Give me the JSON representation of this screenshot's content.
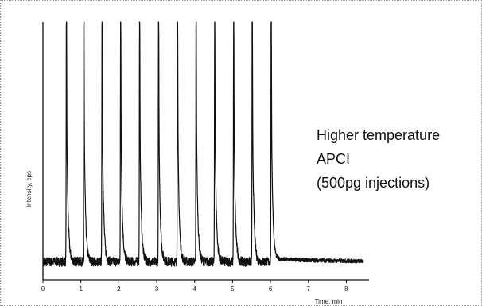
{
  "chart_data": {
    "type": "line",
    "xlabel": "Time, min",
    "ylabel": "Intensity, cps",
    "xlim": [
      0,
      8.6
    ],
    "ylim": [
      0,
      1
    ],
    "x_ticks": [
      0,
      1,
      2,
      3,
      4,
      5,
      6,
      7,
      8
    ],
    "grid": false,
    "line_color": "#111111",
    "baseline": 0.07,
    "peaks": {
      "times": [
        0.62,
        1.08,
        1.56,
        2.05,
        2.55,
        3.05,
        3.55,
        4.04,
        4.53,
        5.03,
        5.52,
        6.02
      ],
      "heights": [
        1,
        1,
        1,
        1,
        1,
        1,
        1,
        1,
        1,
        1,
        1,
        1
      ],
      "clipped": true
    },
    "annotations": [
      "Higher temperature",
      "APCI",
      "(500pg injections)"
    ]
  }
}
